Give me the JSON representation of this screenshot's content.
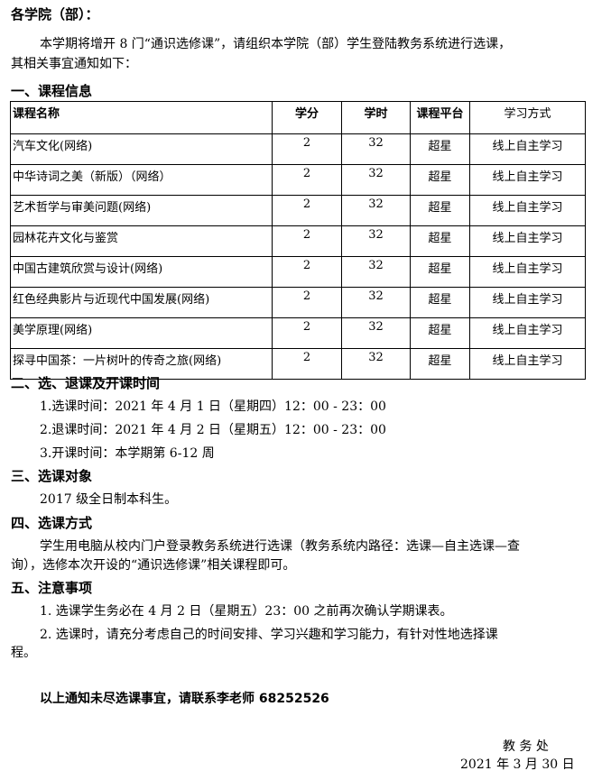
{
  "salutation": "各学院（部）：",
  "intro_line1": "本学期将增开 8 门“通识选修课”，请组织本学院（部）学生登陆教务系统进行选课，",
  "intro_line2": "其相关事宜通知如下：",
  "section1": {
    "title": "一、课程信息",
    "headers": [
      "课程名称",
      "学分",
      "学时",
      "课程平台",
      "学习方式"
    ],
    "rows": [
      [
        "汽车文化(网络)",
        "2",
        "32",
        "超星",
        "线上自主学习"
      ],
      [
        "中华诗词之美（新版）（网络）",
        "2",
        "32",
        "超星",
        "线上自主学习"
      ],
      [
        "艺术哲学与审美问题(网络)",
        "2",
        "32",
        "超星",
        "线上自主学习"
      ],
      [
        "园林花卉文化与鉴赏",
        "2",
        "32",
        "超星",
        "线上自主学习"
      ],
      [
        "中国古建筑欣赏与设计(网络)",
        "2",
        "32",
        "超星",
        "线上自主学习"
      ],
      [
        "红色经典影片与近现代中国发展(网络)",
        "2",
        "32",
        "超星",
        "线上自主学习"
      ],
      [
        "美学原理(网络)",
        "2",
        "32",
        "超星",
        "线上自主学习"
      ],
      [
        "探寻中国茶：一片树叶的传奇之旅(网络)",
        "2",
        "32",
        "超星",
        "线上自主学习"
      ]
    ]
  },
  "section2": {
    "title": "二、选、退课及开课时间",
    "items": [
      "1.选课时间：2021 年 4 月 1 日（星期四）12：00 - 23：00",
      "2.退课时间：2021 年 4 月 2 日（星期五）12：00 - 23：00",
      "3.开课时间：本学期第 6-12 周"
    ]
  },
  "section3": {
    "title": "三、选课对象",
    "text": "2017 级全日制本科生。"
  },
  "section4": {
    "title": "四、选课方式",
    "line1": "学生用电脑从校内门户登录教务系统进行选课（教务系统内路径：选课—自主选课—查",
    "line2": "询），选修本次开设的“通识选修课”相关课程即可。"
  },
  "section5": {
    "title": "五、注意事项",
    "item1": "1. 选课学生务必在 4 月 2 日（星期五）23：00 之前再次确认学期课表。",
    "item2_line1": "2. 选课时，请充分考虑自己的时间安排、学习兴趣和学习能力，有针对性地选择课",
    "item2_line2": "程。"
  },
  "contact": "以上通知未尽选课事宜，请联系李老师 68252526",
  "signature": {
    "office": "教 务 处",
    "date": "2021 年 3 月 30 日"
  }
}
